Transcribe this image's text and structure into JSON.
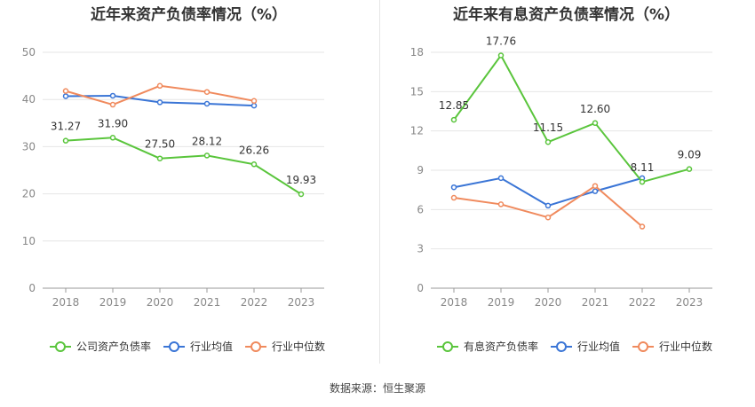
{
  "source": "数据来源：恒生聚源",
  "colors": {
    "company": "#5ac53c",
    "industry_avg": "#3a75d6",
    "industry_median": "#f08a5d",
    "grid": "#e6e6e6",
    "axis": "#999999"
  },
  "chart_data": [
    {
      "type": "line",
      "title": "近年来资产负债率情况（%）",
      "categories": [
        "2018",
        "2019",
        "2020",
        "2021",
        "2022",
        "2023"
      ],
      "ylim": [
        0,
        50
      ],
      "yticks": [
        0,
        10,
        20,
        30,
        40,
        50
      ],
      "grid": true,
      "legend_position": "bottom",
      "series": [
        {
          "name": "公司资产负债率",
          "values": [
            31.27,
            31.9,
            27.5,
            28.12,
            26.26,
            19.93
          ],
          "labels": [
            "31.27",
            "31.90",
            "27.50",
            "28.12",
            "26.26",
            "19.93"
          ],
          "color_key": "company"
        },
        {
          "name": "行业均值",
          "values": [
            40.7,
            40.8,
            39.4,
            39.1,
            38.7,
            null
          ],
          "color_key": "industry_avg"
        },
        {
          "name": "行业中位数",
          "values": [
            41.8,
            38.9,
            42.9,
            41.6,
            39.7,
            null
          ],
          "color_key": "industry_median"
        }
      ]
    },
    {
      "type": "line",
      "title": "近年来有息资产负债率情况（%）",
      "categories": [
        "2018",
        "2019",
        "2020",
        "2021",
        "2022",
        "2023"
      ],
      "ylim": [
        0,
        18
      ],
      "yticks": [
        0,
        3,
        6,
        9,
        12,
        15,
        18
      ],
      "grid": true,
      "legend_position": "bottom",
      "series": [
        {
          "name": "有息资产负债率",
          "values": [
            12.85,
            17.76,
            11.15,
            12.6,
            8.11,
            9.09
          ],
          "labels": [
            "12.85",
            "17.76",
            "11.15",
            "12.60",
            "8.11",
            "9.09"
          ],
          "color_key": "company"
        },
        {
          "name": "行业均值",
          "values": [
            7.7,
            8.4,
            6.3,
            7.4,
            8.4,
            null
          ],
          "color_key": "industry_avg"
        },
        {
          "name": "行业中位数",
          "values": [
            6.9,
            6.4,
            5.4,
            7.8,
            4.7,
            null
          ],
          "color_key": "industry_median"
        }
      ]
    }
  ]
}
